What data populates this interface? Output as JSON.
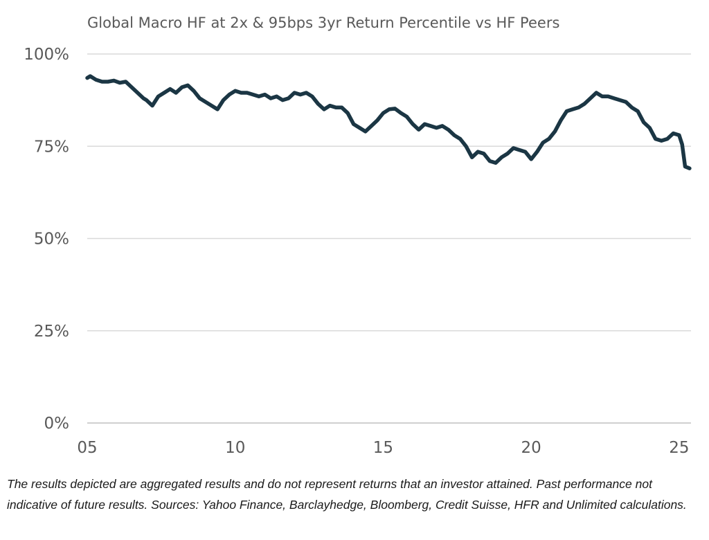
{
  "colors": {
    "series": "#1b3644",
    "grid": "#d9d9d9",
    "text": "#595959"
  },
  "footnote": "The results depicted are aggregated results and do not represent returns that an investor attained. Past performance not indicative of future results. Sources: Yahoo Finance, Barclayhedge, Bloomberg, Credit Suisse, HFR and Unlimited calculations.",
  "chart_data": {
    "type": "line",
    "title": "Global Macro HF at 2x & 95bps 3yr Return Percentile vs HF Peers",
    "xlabel": "",
    "ylabel": "",
    "xlim": [
      2005,
      2025.4
    ],
    "ylim": [
      0,
      100
    ],
    "grid": true,
    "legend": "none",
    "x_ticks": [
      {
        "value": 2005,
        "label": "05"
      },
      {
        "value": 2010,
        "label": "10"
      },
      {
        "value": 2015,
        "label": "15"
      },
      {
        "value": 2020,
        "label": "20"
      },
      {
        "value": 2025,
        "label": "25"
      }
    ],
    "y_ticks": [
      {
        "value": 0,
        "label": "0%"
      },
      {
        "value": 25,
        "label": "25%"
      },
      {
        "value": 50,
        "label": "50%"
      },
      {
        "value": 75,
        "label": "75%"
      },
      {
        "value": 100,
        "label": "100%"
      }
    ],
    "series": [
      {
        "x": [
          2005.0,
          2005.1,
          2005.3,
          2005.5,
          2005.7,
          2005.9,
          2006.1,
          2006.3,
          2006.5,
          2006.7,
          2006.9,
          2007.0,
          2007.2,
          2007.4,
          2007.6,
          2007.8,
          2008.0,
          2008.2,
          2008.4,
          2008.6,
          2008.8,
          2009.0,
          2009.2,
          2009.4,
          2009.6,
          2009.8,
          2010.0,
          2010.2,
          2010.4,
          2010.6,
          2010.8,
          2011.0,
          2011.2,
          2011.4,
          2011.6,
          2011.8,
          2012.0,
          2012.2,
          2012.4,
          2012.6,
          2012.8,
          2013.0,
          2013.2,
          2013.4,
          2013.6,
          2013.8,
          2014.0,
          2014.2,
          2014.4,
          2014.6,
          2014.8,
          2015.0,
          2015.2,
          2015.4,
          2015.6,
          2015.8,
          2016.0,
          2016.2,
          2016.4,
          2016.6,
          2016.8,
          2017.0,
          2017.2,
          2017.4,
          2017.6,
          2017.8,
          2018.0,
          2018.2,
          2018.4,
          2018.6,
          2018.8,
          2019.0,
          2019.2,
          2019.4,
          2019.6,
          2019.8,
          2020.0,
          2020.2,
          2020.4,
          2020.6,
          2020.8,
          2021.0,
          2021.2,
          2021.4,
          2021.6,
          2021.8,
          2022.0,
          2022.2,
          2022.4,
          2022.6,
          2022.8,
          2023.0,
          2023.2,
          2023.4,
          2023.6,
          2023.8,
          2024.0,
          2024.2,
          2024.4,
          2024.6,
          2024.8,
          2025.0,
          2025.1,
          2025.2,
          2025.35
        ],
        "values": [
          93.5,
          94.0,
          93.0,
          92.5,
          92.5,
          92.8,
          92.2,
          92.5,
          91.0,
          89.5,
          88.0,
          87.5,
          86.0,
          88.5,
          89.5,
          90.5,
          89.5,
          91.0,
          91.5,
          90.0,
          88.0,
          87.0,
          86.0,
          85.0,
          87.5,
          89.0,
          90.0,
          89.5,
          89.5,
          89.0,
          88.5,
          89.0,
          88.0,
          88.5,
          87.5,
          88.0,
          89.5,
          89.0,
          89.5,
          88.5,
          86.5,
          85.0,
          86.0,
          85.5,
          85.5,
          84.0,
          81.0,
          80.0,
          79.0,
          80.5,
          82.0,
          84.0,
          85.0,
          85.2,
          84.0,
          83.0,
          81.0,
          79.5,
          81.0,
          80.5,
          80.0,
          80.5,
          79.5,
          78.0,
          77.0,
          75.0,
          72.0,
          73.5,
          73.0,
          71.0,
          70.5,
          72.0,
          73.0,
          74.5,
          74.0,
          73.5,
          71.5,
          73.5,
          76.0,
          77.0,
          79.0,
          82.0,
          84.5,
          85.0,
          85.5,
          86.5,
          88.0,
          89.5,
          88.5,
          88.5,
          88.0,
          87.5,
          87.0,
          85.5,
          84.5,
          81.5,
          80.0,
          77.0,
          76.5,
          77.0,
          78.5,
          78.0,
          75.5,
          69.5,
          69.0
        ]
      }
    ]
  }
}
